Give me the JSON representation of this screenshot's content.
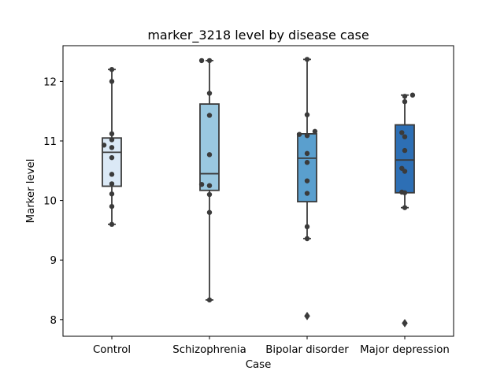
{
  "chart_data": {
    "type": "box",
    "title": "marker_3218 level by disease case",
    "xlabel": "Case",
    "ylabel": "Marker level",
    "ylim": [
      7.72,
      12.6
    ],
    "yticks": [
      8,
      9,
      10,
      11,
      12
    ],
    "grid": false,
    "legend": "none",
    "categories": [
      "Control",
      "Schizophrenia",
      "Bipolar disorder",
      "Major depression"
    ],
    "colors": [
      "#dbe9f6",
      "#9ac8e0",
      "#5a9fce",
      "#2d6fb5"
    ],
    "boxes": [
      {
        "q1": 10.24,
        "median": 10.81,
        "q3": 11.05,
        "whisker_low": 9.6,
        "whisker_high": 12.2,
        "outliers": []
      },
      {
        "q1": 10.17,
        "median": 10.45,
        "q3": 11.62,
        "whisker_low": 8.33,
        "whisker_high": 12.35,
        "outliers": []
      },
      {
        "q1": 9.98,
        "median": 10.71,
        "q3": 11.12,
        "whisker_low": 9.36,
        "whisker_high": 12.37,
        "outliers": [
          8.06
        ]
      },
      {
        "q1": 10.13,
        "median": 10.68,
        "q3": 11.27,
        "whisker_low": 9.88,
        "whisker_high": 11.77,
        "outliers": [
          7.94
        ]
      }
    ],
    "points": [
      [
        {
          "x": 0.0,
          "y": 12.2
        },
        {
          "x": 0.0,
          "y": 12.0
        },
        {
          "x": 0.0,
          "y": 11.12
        },
        {
          "x": -0.08,
          "y": 10.93
        },
        {
          "x": 0.0,
          "y": 10.89
        },
        {
          "x": 0.0,
          "y": 11.02
        },
        {
          "x": 0.0,
          "y": 10.72
        },
        {
          "x": 0.0,
          "y": 10.44
        },
        {
          "x": 0.0,
          "y": 10.28
        },
        {
          "x": 0.0,
          "y": 10.11
        },
        {
          "x": 0.0,
          "y": 9.9
        },
        {
          "x": 0.0,
          "y": 9.6
        }
      ],
      [
        {
          "x": -0.08,
          "y": 12.35
        },
        {
          "x": 0.0,
          "y": 12.35
        },
        {
          "x": 0.0,
          "y": 11.8
        },
        {
          "x": 0.0,
          "y": 11.43
        },
        {
          "x": 0.0,
          "y": 10.77
        },
        {
          "x": -0.08,
          "y": 10.27
        },
        {
          "x": 0.0,
          "y": 10.25
        },
        {
          "x": 0.0,
          "y": 10.1
        },
        {
          "x": 0.0,
          "y": 9.8
        },
        {
          "x": 0.0,
          "y": 8.33
        }
      ],
      [
        {
          "x": 0.0,
          "y": 12.37
        },
        {
          "x": 0.0,
          "y": 11.44
        },
        {
          "x": -0.08,
          "y": 11.11
        },
        {
          "x": 0.0,
          "y": 11.09
        },
        {
          "x": 0.08,
          "y": 11.16
        },
        {
          "x": 0.0,
          "y": 10.79
        },
        {
          "x": 0.0,
          "y": 10.64
        },
        {
          "x": 0.0,
          "y": 10.33
        },
        {
          "x": 0.0,
          "y": 10.12
        },
        {
          "x": 0.0,
          "y": 9.56
        },
        {
          "x": 0.0,
          "y": 9.36
        }
      ],
      [
        {
          "x": 0.0,
          "y": 11.75
        },
        {
          "x": 0.08,
          "y": 11.77
        },
        {
          "x": 0.0,
          "y": 11.66
        },
        {
          "x": -0.03,
          "y": 11.14
        },
        {
          "x": 0.0,
          "y": 11.07
        },
        {
          "x": 0.0,
          "y": 10.84
        },
        {
          "x": -0.03,
          "y": 10.54
        },
        {
          "x": 0.0,
          "y": 10.49
        },
        {
          "x": -0.03,
          "y": 10.14
        },
        {
          "x": 0.0,
          "y": 10.13
        },
        {
          "x": 0.0,
          "y": 9.88
        }
      ]
    ]
  }
}
